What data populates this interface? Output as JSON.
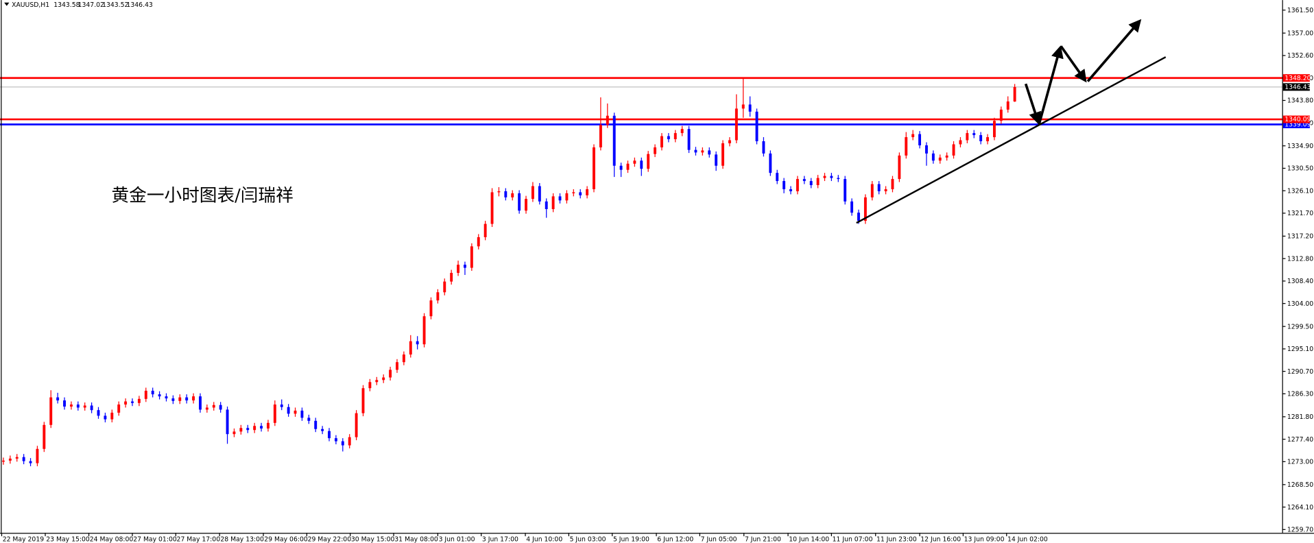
{
  "chart_data": {
    "type": "candlestick",
    "symbol": "XAUUSD,H1",
    "annotation": "黄金一小时图表/闫瑞祥",
    "colors": {
      "up": "#ff0000",
      "down": "#0000ff"
    },
    "x": [
      0,
      1,
      2,
      3,
      4,
      5,
      6,
      7,
      8,
      9,
      10,
      11,
      12,
      13,
      14,
      15,
      16,
      17,
      18,
      19,
      20,
      21,
      22,
      23,
      24,
      25,
      26,
      27,
      28,
      29,
      30,
      31,
      32,
      33,
      34,
      35,
      36,
      37,
      38,
      39,
      40,
      41,
      42,
      43,
      44,
      45,
      46,
      47,
      48,
      49,
      50,
      51,
      52,
      53,
      54,
      55,
      56,
      57,
      58,
      59,
      60,
      61,
      62,
      63,
      64,
      65,
      66,
      67,
      68,
      69,
      70,
      71,
      72,
      73,
      74,
      75,
      76,
      77,
      78,
      79,
      80,
      81,
      82,
      83,
      84,
      85,
      86,
      87,
      88,
      89,
      90,
      91,
      92,
      93,
      94,
      95,
      96,
      97,
      98,
      99,
      100,
      101,
      102,
      103,
      104,
      105,
      106,
      107,
      108,
      109,
      110,
      111,
      112,
      113,
      114,
      115,
      116,
      117,
      118,
      119,
      120,
      121,
      122,
      123,
      124,
      125,
      126,
      127,
      128,
      129,
      130,
      131,
      132,
      133,
      134,
      135,
      136,
      137,
      138,
      139,
      140,
      141,
      142,
      143,
      144,
      145,
      146,
      147,
      148,
      149
    ],
    "open": [
      1273.0,
      1273.2,
      1273.6,
      1273.9,
      1273.1,
      1272.7,
      1275.5,
      1280.2,
      1285.6,
      1285.0,
      1283.8,
      1284.2,
      1283.6,
      1284.0,
      1283.1,
      1282.0,
      1281.3,
      1282.6,
      1284.2,
      1284.8,
      1284.5,
      1285.3,
      1286.9,
      1286.2,
      1285.8,
      1285.4,
      1284.9,
      1285.6,
      1285.0,
      1285.8,
      1283.2,
      1283.6,
      1284.1,
      1283.2,
      1278.4,
      1278.9,
      1279.6,
      1279.2,
      1280.0,
      1279.5,
      1280.6,
      1284.2,
      1283.7,
      1282.4,
      1283.0,
      1281.6,
      1281.0,
      1279.4,
      1279.0,
      1277.6,
      1277.0,
      1276.2,
      1277.8,
      1282.5,
      1287.4,
      1288.6,
      1289.0,
      1289.5,
      1291.0,
      1292.5,
      1294.0,
      1296.6,
      1296.0,
      1301.5,
      1304.6,
      1306.2,
      1308.3,
      1310.0,
      1311.6,
      1311.0,
      1315.2,
      1317.0,
      1319.6,
      1325.8,
      1326.0,
      1324.8,
      1325.6,
      1322.2,
      1324.5,
      1327.0,
      1324.0,
      1322.5,
      1325.0,
      1324.2,
      1325.6,
      1325.8,
      1325.2,
      1326.4,
      1334.6,
      1339.0,
      1340.8,
      1331.0,
      1330.2,
      1331.4,
      1332.0,
      1330.4,
      1333.3,
      1334.6,
      1336.8,
      1336.2,
      1337.4,
      1338.2,
      1334.1,
      1333.6,
      1334.0,
      1333.2,
      1331.0,
      1335.4,
      1336.0,
      1342.2,
      1343.0,
      1341.6,
      1335.8,
      1333.4,
      1329.6,
      1328.0,
      1326.4,
      1326.0,
      1328.4,
      1328.0,
      1327.2,
      1328.6,
      1329.0,
      1328.6,
      1328.4,
      1324.0,
      1321.8,
      1320.2,
      1324.8,
      1327.4,
      1326.0,
      1326.4,
      1328.4,
      1333.0,
      1336.6,
      1337.2,
      1335.0,
      1333.4,
      1332.0,
      1332.6,
      1333.0,
      1335.2,
      1336.0,
      1337.4,
      1337.0,
      1335.8,
      1336.6,
      1339.8,
      1342.0,
      1343.58
    ],
    "high": [
      1273.8,
      1274.2,
      1274.5,
      1274.5,
      1273.7,
      1276.1,
      1280.8,
      1287.0,
      1286.5,
      1285.6,
      1284.8,
      1284.8,
      1284.6,
      1284.6,
      1283.7,
      1282.6,
      1283.2,
      1284.8,
      1285.4,
      1285.4,
      1285.9,
      1287.5,
      1287.5,
      1286.8,
      1286.4,
      1286.0,
      1286.2,
      1286.2,
      1286.4,
      1286.4,
      1284.2,
      1284.7,
      1284.7,
      1283.8,
      1279.5,
      1280.2,
      1280.2,
      1280.6,
      1280.6,
      1281.2,
      1285.0,
      1285.2,
      1284.3,
      1283.6,
      1283.6,
      1282.2,
      1281.6,
      1280.0,
      1279.6,
      1278.2,
      1277.6,
      1278.4,
      1283.1,
      1288.0,
      1289.2,
      1289.6,
      1290.1,
      1291.6,
      1293.1,
      1294.6,
      1297.8,
      1297.6,
      1302.1,
      1305.2,
      1306.8,
      1308.9,
      1310.6,
      1312.4,
      1312.2,
      1315.8,
      1317.6,
      1320.2,
      1326.6,
      1326.8,
      1326.6,
      1326.2,
      1326.2,
      1325.1,
      1327.8,
      1327.6,
      1324.6,
      1325.6,
      1325.6,
      1326.2,
      1326.4,
      1326.4,
      1327.0,
      1335.2,
      1344.4,
      1343.2,
      1341.4,
      1331.6,
      1332.0,
      1332.6,
      1332.6,
      1333.9,
      1335.2,
      1337.4,
      1337.4,
      1338.0,
      1338.8,
      1338.8,
      1334.7,
      1334.6,
      1334.6,
      1333.8,
      1336.0,
      1336.6,
      1345.0,
      1348.3,
      1344.6,
      1342.2,
      1336.6,
      1334.0,
      1330.2,
      1328.6,
      1327.0,
      1329.0,
      1329.0,
      1328.6,
      1329.2,
      1329.6,
      1329.6,
      1329.2,
      1329.0,
      1324.6,
      1322.4,
      1325.4,
      1328.0,
      1328.0,
      1327.0,
      1329.0,
      1333.6,
      1337.6,
      1338.0,
      1337.8,
      1335.6,
      1334.0,
      1333.2,
      1333.6,
      1335.8,
      1336.6,
      1338.0,
      1338.0,
      1337.6,
      1337.2,
      1340.4,
      1342.6,
      1344.6,
      1347.02
    ],
    "low": [
      1272.4,
      1272.6,
      1273.0,
      1272.5,
      1272.1,
      1272.1,
      1274.9,
      1279.6,
      1284.4,
      1283.2,
      1283.2,
      1283.0,
      1283.0,
      1282.5,
      1281.4,
      1280.7,
      1280.7,
      1282.0,
      1283.6,
      1283.9,
      1283.9,
      1284.7,
      1285.6,
      1285.2,
      1284.8,
      1284.3,
      1284.3,
      1284.4,
      1284.4,
      1282.6,
      1282.6,
      1283.0,
      1282.6,
      1276.5,
      1277.8,
      1278.3,
      1278.6,
      1278.6,
      1278.9,
      1278.9,
      1280.0,
      1283.1,
      1281.8,
      1281.8,
      1281.0,
      1280.4,
      1278.8,
      1278.4,
      1277.0,
      1276.4,
      1275.0,
      1275.6,
      1277.2,
      1281.9,
      1286.8,
      1288.0,
      1288.4,
      1288.9,
      1290.4,
      1291.9,
      1293.4,
      1295.0,
      1295.4,
      1300.9,
      1304.0,
      1305.6,
      1307.7,
      1309.4,
      1309.6,
      1310.4,
      1314.6,
      1316.4,
      1319.0,
      1325.0,
      1324.2,
      1324.2,
      1321.6,
      1321.6,
      1323.9,
      1323.4,
      1320.8,
      1321.9,
      1323.6,
      1323.6,
      1325.0,
      1324.6,
      1324.6,
      1325.8,
      1334.0,
      1338.4,
      1328.8,
      1328.8,
      1329.6,
      1330.8,
      1329.0,
      1329.8,
      1332.7,
      1334.0,
      1335.6,
      1335.6,
      1336.8,
      1333.5,
      1333.0,
      1333.0,
      1332.6,
      1330.0,
      1330.4,
      1334.8,
      1335.4,
      1340.4,
      1340.6,
      1335.2,
      1332.8,
      1329.0,
      1327.4,
      1325.6,
      1325.4,
      1325.4,
      1327.4,
      1326.6,
      1326.6,
      1328.0,
      1328.0,
      1327.8,
      1323.4,
      1321.2,
      1319.6,
      1319.6,
      1324.2,
      1325.4,
      1325.4,
      1325.8,
      1327.8,
      1332.4,
      1336.0,
      1334.4,
      1331.0,
      1331.4,
      1331.4,
      1332.0,
      1332.4,
      1334.6,
      1335.4,
      1336.4,
      1335.2,
      1335.2,
      1336.0,
      1339.2,
      1341.4,
      1343.52
    ],
    "close": [
      1273.2,
      1273.6,
      1273.9,
      1273.1,
      1272.7,
      1275.5,
      1280.2,
      1285.6,
      1285.0,
      1283.8,
      1284.2,
      1283.6,
      1284.0,
      1283.1,
      1282.0,
      1281.3,
      1282.6,
      1284.2,
      1284.8,
      1284.5,
      1285.3,
      1286.9,
      1286.2,
      1285.8,
      1285.4,
      1284.9,
      1285.6,
      1285.0,
      1285.8,
      1283.2,
      1283.6,
      1284.1,
      1283.2,
      1278.4,
      1278.9,
      1279.6,
      1279.2,
      1280.0,
      1279.5,
      1280.6,
      1284.2,
      1283.7,
      1282.4,
      1283.0,
      1281.6,
      1281.0,
      1279.4,
      1279.0,
      1277.6,
      1277.0,
      1276.2,
      1277.8,
      1282.5,
      1287.4,
      1288.6,
      1289.0,
      1289.5,
      1291.0,
      1292.5,
      1294.0,
      1296.6,
      1296.0,
      1301.5,
      1304.6,
      1306.2,
      1308.3,
      1310.0,
      1311.6,
      1311.0,
      1315.2,
      1317.0,
      1319.6,
      1325.8,
      1326.0,
      1324.8,
      1325.6,
      1322.2,
      1324.5,
      1327.0,
      1324.0,
      1322.5,
      1325.0,
      1324.2,
      1325.6,
      1325.8,
      1325.2,
      1326.4,
      1334.6,
      1339.0,
      1340.8,
      1331.0,
      1330.2,
      1331.4,
      1332.0,
      1330.4,
      1333.3,
      1334.6,
      1336.8,
      1336.2,
      1337.4,
      1338.2,
      1334.1,
      1333.6,
      1334.0,
      1333.2,
      1331.0,
      1335.4,
      1336.0,
      1342.2,
      1343.0,
      1341.6,
      1335.8,
      1333.4,
      1329.6,
      1328.0,
      1326.4,
      1326.0,
      1328.4,
      1328.0,
      1327.2,
      1328.6,
      1329.0,
      1328.6,
      1328.4,
      1324.0,
      1321.8,
      1320.2,
      1324.8,
      1327.4,
      1326.0,
      1326.4,
      1328.4,
      1333.0,
      1336.6,
      1337.2,
      1335.0,
      1333.4,
      1332.0,
      1332.6,
      1333.0,
      1335.2,
      1336.0,
      1337.4,
      1337.0,
      1335.8,
      1336.6,
      1339.8,
      1342.0,
      1343.6,
      1346.43
    ],
    "xlim": [
      -0.5,
      188.4
    ],
    "ylim": [
      1259.04,
      1363.47
    ],
    "xticks": [
      {
        "value": -0.25,
        "label": "22 May 2019"
      },
      {
        "value": 6.17,
        "label": "23 May 15:00"
      },
      {
        "value": 12.59,
        "label": "24 May 08:00"
      },
      {
        "value": 19.0,
        "label": "27 May 01:00"
      },
      {
        "value": 25.4,
        "label": "27 May 17:00"
      },
      {
        "value": 31.85,
        "label": "28 May 13:00"
      },
      {
        "value": 38.3,
        "label": "29 May 06:00"
      },
      {
        "value": 44.7,
        "label": "29 May 22:00"
      },
      {
        "value": 51.1,
        "label": "30 May 15:00"
      },
      {
        "value": 57.5,
        "label": "31 May 08:00"
      },
      {
        "value": 64.0,
        "label": "3 Jun 01:00"
      },
      {
        "value": 70.4,
        "label": "3 Jun 17:00"
      },
      {
        "value": 76.9,
        "label": "4 Jun 10:00"
      },
      {
        "value": 83.3,
        "label": "5 Jun 03:00"
      },
      {
        "value": 89.7,
        "label": "5 Jun 19:00"
      },
      {
        "value": 96.2,
        "label": "6 Jun 12:00"
      },
      {
        "value": 102.6,
        "label": "7 Jun 05:00"
      },
      {
        "value": 109.1,
        "label": "7 Jun 21:00"
      },
      {
        "value": 115.6,
        "label": "10 Jun 14:00"
      },
      {
        "value": 122.0,
        "label": "11 Jun 07:00"
      },
      {
        "value": 128.5,
        "label": "11 Jun 23:00"
      },
      {
        "value": 135.0,
        "label": "12 Jun 16:00"
      },
      {
        "value": 141.4,
        "label": "13 Jun 09:00"
      },
      {
        "value": 147.8,
        "label": "14 Jun 02:00"
      }
    ],
    "yticks": [
      {
        "value": 1259.7,
        "label": "1259.70"
      },
      {
        "value": 1264.1,
        "label": "1264.10"
      },
      {
        "value": 1268.5,
        "label": "1268.50"
      },
      {
        "value": 1273,
        "label": "1273.00"
      },
      {
        "value": 1277.4,
        "label": "1277.40"
      },
      {
        "value": 1281.8,
        "label": "1281.80"
      },
      {
        "value": 1286.3,
        "label": "1286.30"
      },
      {
        "value": 1290.7,
        "label": "1290.70"
      },
      {
        "value": 1295.1,
        "label": "1295.10"
      },
      {
        "value": 1299.5,
        "label": "1299.50"
      },
      {
        "value": 1304,
        "label": "1304.00"
      },
      {
        "value": 1308.4,
        "label": "1308.40"
      },
      {
        "value": 1312.8,
        "label": "1312.80"
      },
      {
        "value": 1317.2,
        "label": "1317.20"
      },
      {
        "value": 1321.7,
        "label": "1321.70"
      },
      {
        "value": 1326.1,
        "label": "1326.10"
      },
      {
        "value": 1330.5,
        "label": "1330.50"
      },
      {
        "value": 1334.9,
        "label": "1334.90"
      },
      {
        "value": 1339.4,
        "label": "1339.40"
      },
      {
        "value": 1343.8,
        "label": "1343.80"
      },
      {
        "value": 1348.2,
        "label": "1348.20"
      },
      {
        "value": 1352.6,
        "label": "1352.60"
      },
      {
        "value": 1357,
        "label": "1357.00"
      },
      {
        "value": 1361.5,
        "label": "1361.50"
      }
    ],
    "levels": [
      {
        "value": 1346.43,
        "label": "1346.43",
        "color": "#000000",
        "line_color": "#c0c0c0"
      },
      {
        "value": 1348.2,
        "label": "1348.20",
        "color": "#ff0000",
        "line_color": "#ff0000"
      },
      {
        "value": 1339.09,
        "label": "1339.09",
        "color": "#0000ff",
        "line_color": "#0000ff"
      },
      {
        "value": 1340.09,
        "label": "1340.09",
        "color": "#ff0000",
        "line_color": "#ff0000"
      }
    ]
  }
}
